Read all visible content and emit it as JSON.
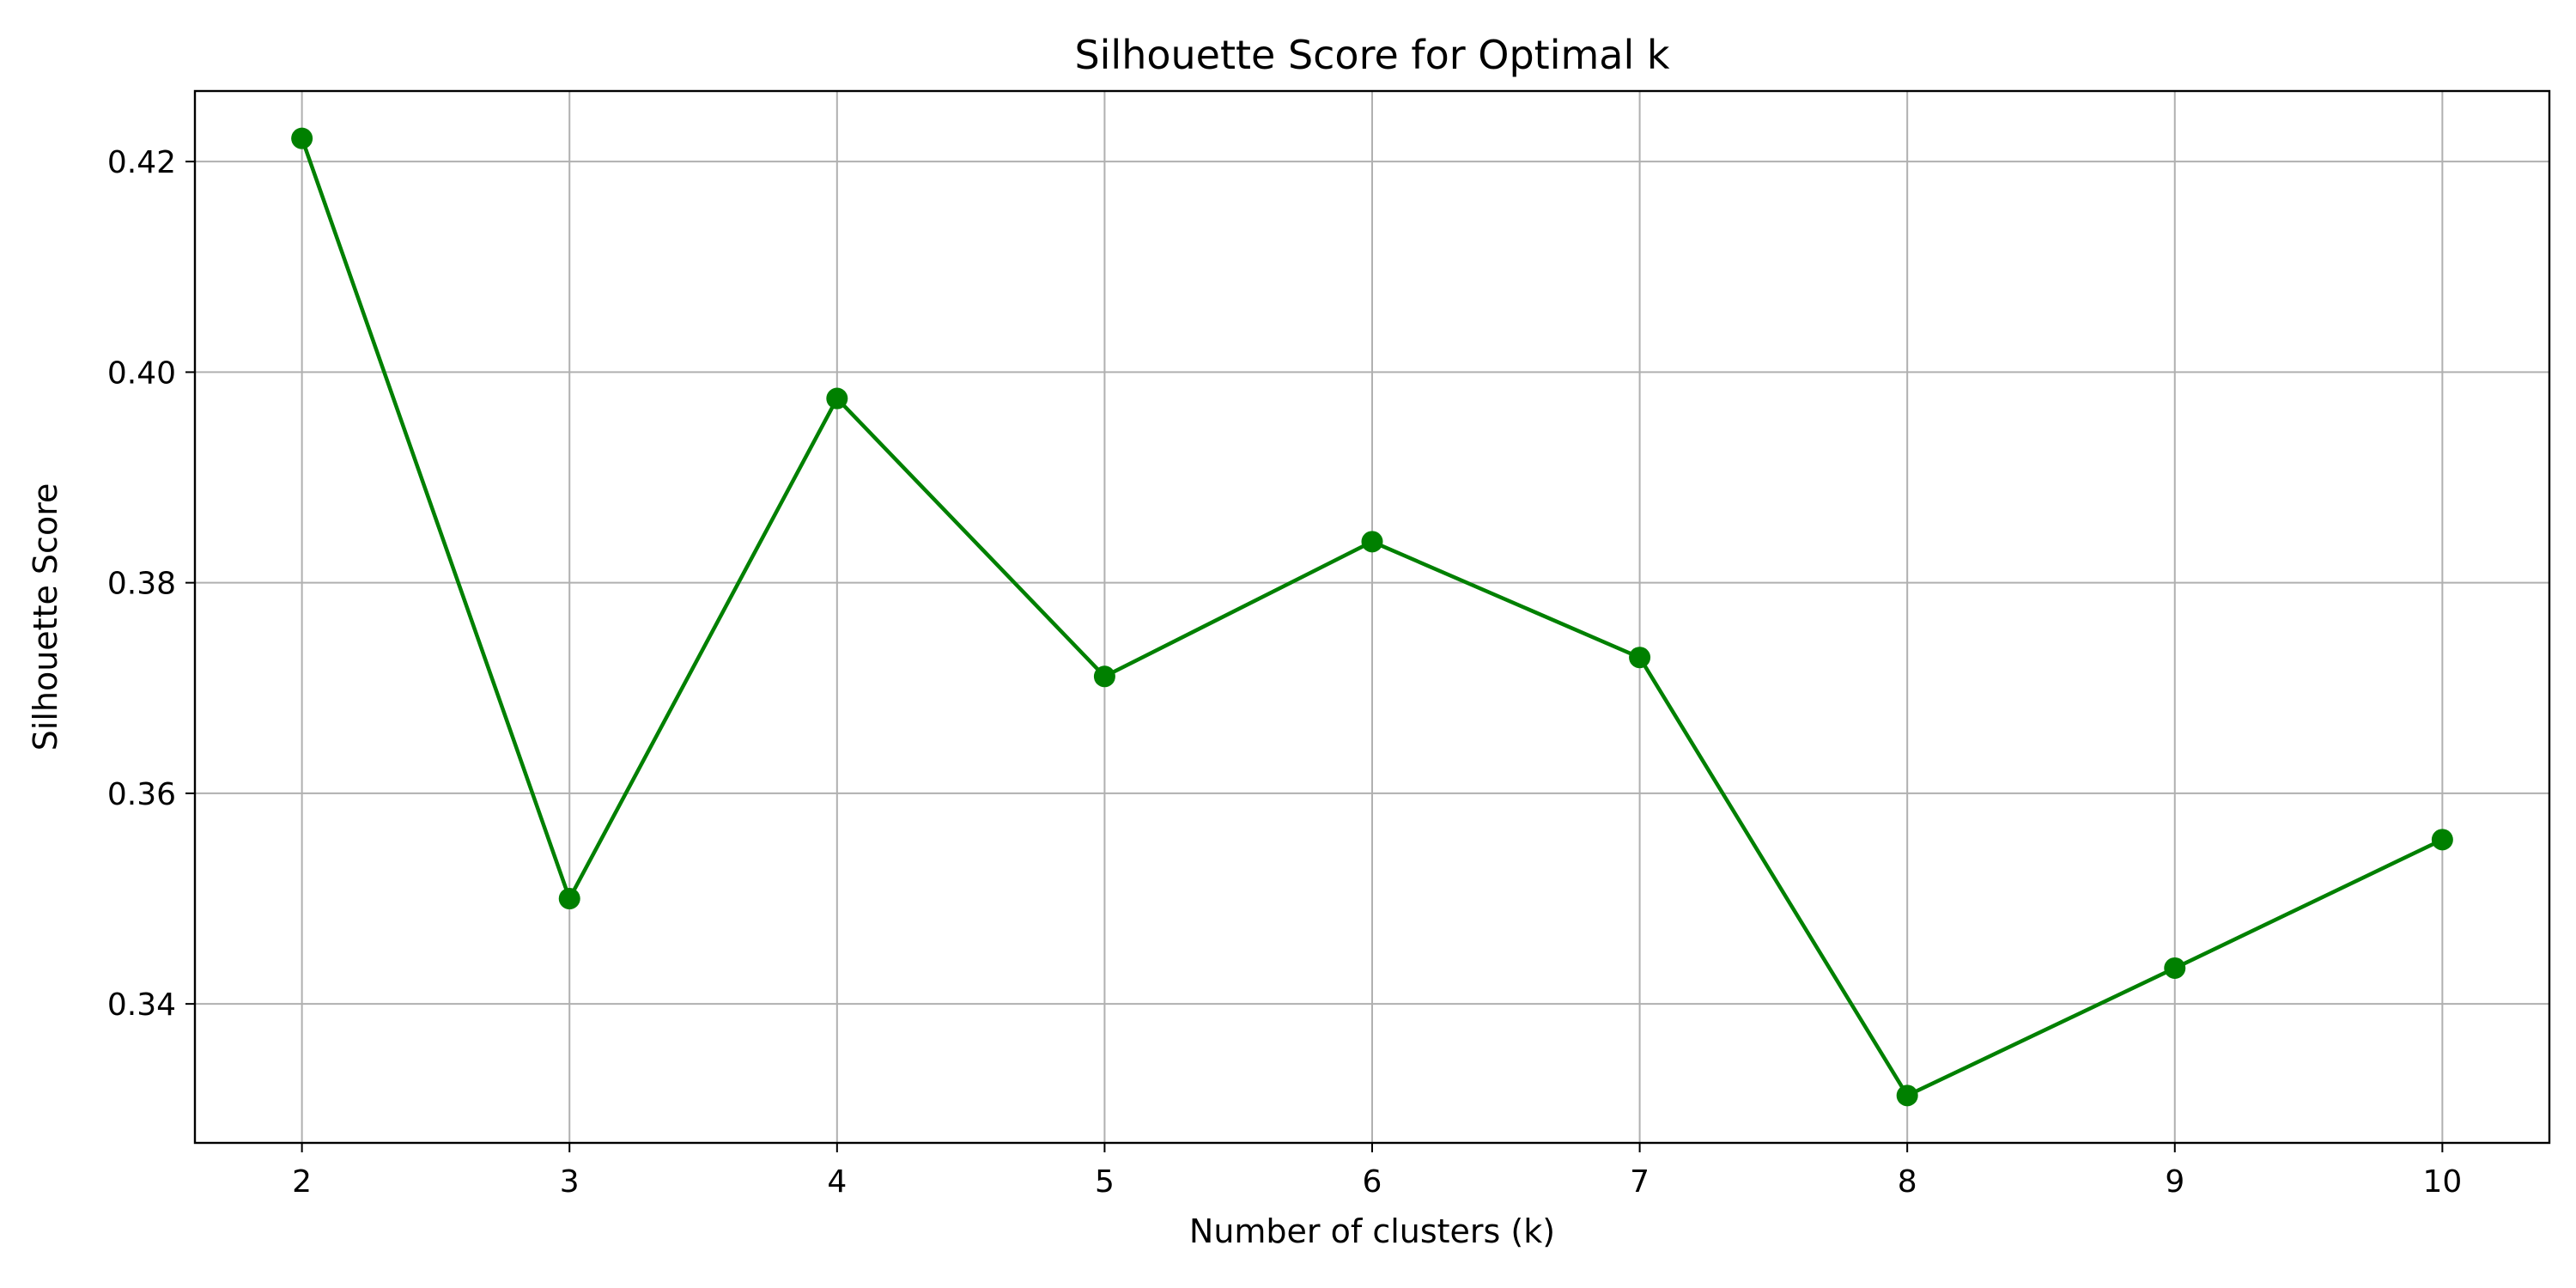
{
  "chart_data": {
    "type": "line",
    "title": "Silhouette Score for Optimal k",
    "xlabel": "Number of clusters (k)",
    "ylabel": "Silhouette Score",
    "x": [
      2,
      3,
      4,
      5,
      6,
      7,
      8,
      9,
      10
    ],
    "series": [
      {
        "values": [
          0.4222,
          0.35,
          0.3975,
          0.3711,
          0.3839,
          0.3729,
          0.3313,
          0.3434,
          0.3556
        ],
        "color": "#008000",
        "marker": "circle"
      }
    ],
    "xticks": [
      2,
      3,
      4,
      5,
      6,
      7,
      8,
      9,
      10
    ],
    "yticks": [
      0.34,
      0.36,
      0.38,
      0.4,
      0.42
    ],
    "ytick_labels": [
      "0.34",
      "0.36",
      "0.38",
      "0.40",
      "0.42"
    ],
    "xlim": [
      1.6,
      10.4
    ],
    "ylim": [
      0.3268,
      0.4267
    ],
    "grid": true
  }
}
